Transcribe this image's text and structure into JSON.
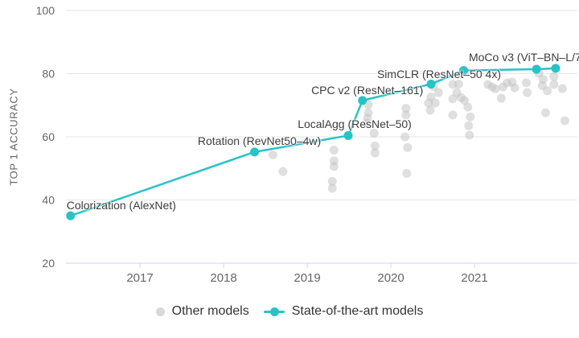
{
  "legend": {
    "items": [
      {
        "label": "Other models"
      },
      {
        "label": "State-of-the-art models"
      }
    ]
  },
  "chart_data": {
    "type": "scatter",
    "title": "",
    "xlabel": "",
    "ylabel": "TOP 1 ACCURACY",
    "xlim": [
      2016.115,
      2022.23
    ],
    "ylim": [
      20,
      100
    ],
    "x_ticks": [
      2017,
      2018,
      2019,
      2020,
      2021
    ],
    "y_ticks": [
      20,
      40,
      60,
      80,
      100
    ],
    "grid": true,
    "legend_position": "bottom",
    "colors": {
      "other_models": "#bfbfbf",
      "sota": "#27c3c6",
      "gridline": "#e6e6e6",
      "axis_line": "#ccd6eb",
      "tick_label": "#666666",
      "annotation_text": "#3c3c3c",
      "legend_text": "#333333"
    },
    "series": [
      {
        "name": "Other models",
        "type": "scatter",
        "points": [
          [
            2018.59,
            54.3
          ],
          [
            2018.71,
            49.0
          ],
          [
            2019.32,
            55.8
          ],
          [
            2019.32,
            52.4
          ],
          [
            2019.32,
            50.6
          ],
          [
            2019.3,
            45.9
          ],
          [
            2019.3,
            43.7
          ],
          [
            2019.73,
            70.2
          ],
          [
            2019.73,
            67.6
          ],
          [
            2019.72,
            65.9
          ],
          [
            2019.71,
            64.3
          ],
          [
            2019.8,
            61.1
          ],
          [
            2019.81,
            57.1
          ],
          [
            2019.81,
            54.9
          ],
          [
            2020.18,
            69.0
          ],
          [
            2020.18,
            66.9
          ],
          [
            2020.17,
            60.0
          ],
          [
            2020.2,
            56.6
          ],
          [
            2020.19,
            48.4
          ],
          [
            2020.51,
            75.9
          ],
          [
            2020.57,
            74.0
          ],
          [
            2020.48,
            72.6
          ],
          [
            2020.45,
            70.7
          ],
          [
            2020.53,
            70.7
          ],
          [
            2020.47,
            68.4
          ],
          [
            2020.74,
            76.6
          ],
          [
            2020.81,
            76.7
          ],
          [
            2020.79,
            74.0
          ],
          [
            2020.74,
            72.0
          ],
          [
            2020.84,
            72.4
          ],
          [
            2020.88,
            71.5
          ],
          [
            2020.74,
            66.9
          ],
          [
            2020.92,
            69.4
          ],
          [
            2020.95,
            66.3
          ],
          [
            2020.93,
            63.5
          ],
          [
            2020.94,
            60.5
          ],
          [
            2021.16,
            76.6
          ],
          [
            2021.21,
            75.8
          ],
          [
            2021.25,
            75.2
          ],
          [
            2021.34,
            75.8
          ],
          [
            2021.39,
            77.1
          ],
          [
            2021.32,
            72.2
          ],
          [
            2021.45,
            77.3
          ],
          [
            2021.48,
            75.5
          ],
          [
            2021.62,
            77.1
          ],
          [
            2021.63,
            74.0
          ],
          [
            2021.77,
            80.1
          ],
          [
            2021.82,
            78.2
          ],
          [
            2021.81,
            76.2
          ],
          [
            2021.87,
            74.6
          ],
          [
            2021.95,
            79.1
          ],
          [
            2021.95,
            76.6
          ],
          [
            2022.05,
            75.3
          ],
          [
            2021.85,
            67.6
          ],
          [
            2022.08,
            65.1
          ]
        ]
      },
      {
        "name": "State-of-the-art models",
        "type": "line",
        "points": [
          {
            "x": 2016.17,
            "y": 35.0,
            "label": "Colorization (AlexNet)",
            "align": "left",
            "dx": -5,
            "dy": -21
          },
          {
            "x": 2018.37,
            "y": 55.2,
            "label": "Rotation (RevNet50–4w)",
            "align": "center",
            "dx": 6,
            "dy": -22
          },
          {
            "x": 2019.49,
            "y": 60.4,
            "label": "LocalAgg (ResNet–50)",
            "align": "center",
            "dx": 8,
            "dy": -22
          },
          {
            "x": 2019.66,
            "y": 71.5,
            "label": "CPC v2 (ResNet–161)",
            "align": "center",
            "dx": 6,
            "dy": -21
          },
          {
            "x": 2020.48,
            "y": 76.7,
            "label": "SimCLR (ResNet–50 4x)",
            "align": "center",
            "dx": 10,
            "dy": -20
          },
          {
            "x": 2020.87,
            "y": 81.0
          },
          {
            "x": 2021.74,
            "y": 81.4
          },
          {
            "x": 2021.97,
            "y": 81.7,
            "label": "MoCo v3 (ViT–BN–L/7",
            "align": "left",
            "dx": -108,
            "dy": -22
          }
        ]
      }
    ]
  }
}
